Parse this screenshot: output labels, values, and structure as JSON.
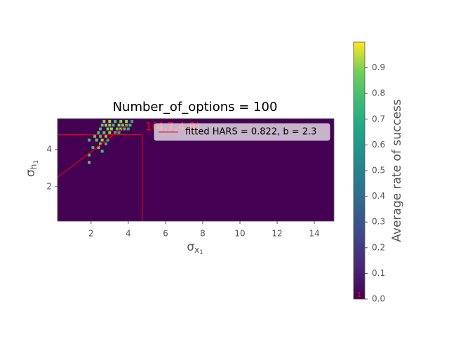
{
  "chart_data": {
    "type": "heatmap",
    "title": "Number_of_options = 100",
    "xlabel": {
      "base": "σ",
      "sub": "x",
      "subsub": "1"
    },
    "ylabel": {
      "base": "σ",
      "sub": "h",
      "subsub": "1"
    },
    "xlim": [
      0.2,
      15.05
    ],
    "ylim": [
      0.15,
      5.65
    ],
    "xticks": [
      2,
      4,
      6,
      8,
      10,
      12,
      14
    ],
    "yticks": [
      2,
      4
    ],
    "colormap": "viridis",
    "clim": [
      0,
      1
    ],
    "colorbar_label": "Average rate of success",
    "cticks": [
      {
        "value": 0,
        "label": "0.0"
      },
      0.1,
      0.2,
      0.3,
      0.4,
      0.5,
      0.6,
      0.7,
      0.8,
      0.9
    ],
    "colorbar_marker": "1",
    "bin_size": [
      0.15,
      0.15
    ],
    "cells": {
      "x": [
        2.7,
        3.0,
        3.3,
        3.6,
        3.9,
        4.2,
        2.6,
        2.8,
        3.0,
        3.2,
        3.5,
        3.7,
        3.9,
        4.1,
        2.5,
        2.9,
        3.1,
        3.4,
        3.6,
        3.8,
        4.0,
        2.4,
        2.7,
        3.0,
        3.3,
        3.5,
        2.2,
        2.5,
        2.8,
        1.9,
        2.3,
        2.6,
        2.9,
        2.5,
        2.8,
        2.1,
        2.4,
        2.6,
        1.9,
        1.9
      ],
      "y": [
        5.5,
        5.5,
        5.5,
        5.5,
        5.5,
        5.5,
        5.3,
        5.3,
        5.3,
        5.3,
        5.3,
        5.3,
        5.3,
        5.3,
        5.1,
        5.1,
        5.1,
        5.1,
        5.1,
        5.1,
        5.1,
        4.9,
        4.9,
        4.9,
        4.9,
        4.9,
        4.7,
        4.7,
        4.7,
        4.5,
        4.5,
        4.5,
        4.5,
        4.3,
        4.3,
        4.1,
        4.1,
        3.9,
        3.7,
        3.3
      ],
      "values": [
        0.8,
        0.85,
        0.7,
        0.8,
        0.85,
        0.6,
        0.75,
        0.85,
        0.8,
        0.7,
        0.85,
        0.8,
        0.75,
        0.7,
        0.7,
        0.8,
        0.85,
        0.75,
        0.8,
        0.7,
        0.65,
        0.7,
        0.75,
        0.8,
        0.7,
        0.6,
        0.75,
        0.7,
        0.8,
        0.7,
        0.75,
        0.8,
        0.7,
        0.75,
        0.65,
        0.7,
        0.8,
        0.7,
        0.7,
        0.75
      ]
    },
    "fit_line": {
      "name": "fitted HARS = 0.822, b = 2.3",
      "color": "#ff0000",
      "x": [
        0.2,
        3.9
      ],
      "y": [
        2.5,
        5.3
      ]
    },
    "box": {
      "x": 4.75,
      "y": 4.8,
      "color": "#ff0000"
    },
    "annotation": {
      "text": "1(4.7,4.8)",
      "x": 4.9,
      "y": 5.2
    },
    "legend": "upper right"
  }
}
